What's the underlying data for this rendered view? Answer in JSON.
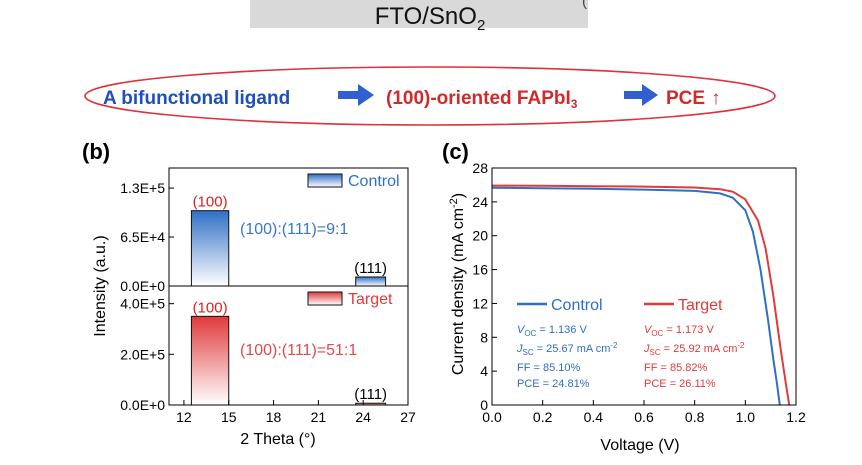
{
  "header": {
    "substrate_base": "FTO/SnO",
    "substrate_sub": "2",
    "substrate_tail": "(",
    "banner_part1": "A bifunctional ligand",
    "banner_part2": "(100)-oriented FAPbI",
    "banner_sub": "3",
    "banner_part3": "PCE",
    "banner_arrow_glyph": "↑",
    "colors": {
      "banner_outline": "#e0303a",
      "banner_text1": "#1f4fbf",
      "banner_text2": "#d12a2a",
      "arrow": "#2f5fd0",
      "substrate_box": "#d9d9d9"
    }
  },
  "chart_data": [
    {
      "panel_label": "(b)",
      "type": "bar",
      "xlabel": "2 Theta (°)",
      "ylabel": "Intensity (a.u.)",
      "xlim": [
        11,
        27
      ],
      "xticks": [
        12,
        15,
        18,
        21,
        24,
        27
      ],
      "xtick_labels": [
        "12",
        "15",
        "18",
        "21",
        "24",
        "27"
      ],
      "subplots": [
        {
          "name": "Control",
          "legend": "Control",
          "color": "#2f6fc4",
          "ylim": [
            0,
            150000
          ],
          "yticks": [
            0,
            65000,
            130000
          ],
          "ytick_labels": [
            "0.0E+0",
            "6.5E+4",
            "1.3E+5"
          ],
          "bars": [
            {
              "label": "(100)",
              "x_start": 12.5,
              "x_end": 15,
              "value": 100000,
              "label_color": "#e02020"
            },
            {
              "label": "(111)",
              "x_start": 23.5,
              "x_end": 25.5,
              "value": 12000,
              "label_color": "#000000"
            }
          ],
          "annotation": "(100):(111)=9:1",
          "annotation_color": "#3a78c4"
        },
        {
          "name": "Target",
          "legend": "Target",
          "color": "#e03a3a",
          "ylim": [
            0,
            450000
          ],
          "yticks": [
            0,
            200000,
            400000
          ],
          "ytick_labels": [
            "0.0E+0",
            "2.0E+5",
            "4.0E+5"
          ],
          "bars": [
            {
              "label": "(100)",
              "x_start": 12.5,
              "x_end": 15,
              "value": 350000,
              "label_color": "#e02020"
            },
            {
              "label": "(111)",
              "x_start": 23.5,
              "x_end": 25.5,
              "value": 7000,
              "label_color": "#000000"
            }
          ],
          "annotation": "(100):(111)=51:1",
          "annotation_color": "#e04a4a"
        }
      ]
    },
    {
      "panel_label": "(c)",
      "type": "line",
      "xlabel": "Voltage (V)",
      "ylabel_prefix": "Current density (mA cm",
      "ylabel_sup": "-2",
      "ylabel_suffix": ")",
      "xlim": [
        0,
        1.2
      ],
      "ylim": [
        0,
        28
      ],
      "xticks": [
        0.0,
        0.2,
        0.4,
        0.6,
        0.8,
        1.0,
        1.2
      ],
      "xtick_labels": [
        "0.0",
        "0.2",
        "0.4",
        "0.6",
        "0.8",
        "1.0",
        "1.2"
      ],
      "yticks": [
        0,
        4,
        8,
        12,
        16,
        20,
        24,
        28
      ],
      "ytick_labels": [
        "0",
        "4",
        "8",
        "12",
        "16",
        "20",
        "24",
        "28"
      ],
      "series": [
        {
          "name": "Control",
          "color": "#2f6fc4",
          "x": [
            0.0,
            0.2,
            0.4,
            0.6,
            0.8,
            0.9,
            0.95,
            1.0,
            1.03,
            1.06,
            1.09,
            1.11,
            1.125,
            1.136
          ],
          "y": [
            25.67,
            25.6,
            25.55,
            25.45,
            25.3,
            25.0,
            24.5,
            23.0,
            20.5,
            16.0,
            10.0,
            5.5,
            2.5,
            0.0
          ],
          "params": {
            "voc_label": "V",
            "voc_sub": "OC",
            "voc_value": " = 1.136 V",
            "jsc_label": "J",
            "jsc_sub": "SC",
            "jsc_value": " = 25.67 mA cm",
            "jsc_sup": "-2",
            "ff": "FF = 85.10%",
            "pce": "PCE = 24.81%"
          }
        },
        {
          "name": "Target",
          "color": "#e03a3a",
          "x": [
            0.0,
            0.2,
            0.4,
            0.6,
            0.8,
            0.9,
            0.95,
            1.0,
            1.05,
            1.08,
            1.11,
            1.14,
            1.16,
            1.173
          ],
          "y": [
            25.92,
            25.9,
            25.85,
            25.8,
            25.7,
            25.5,
            25.2,
            24.3,
            21.8,
            18.5,
            13.0,
            6.5,
            2.5,
            0.0
          ],
          "params": {
            "voc_label": "V",
            "voc_sub": "OC",
            "voc_value": " = 1.173 V",
            "jsc_label": "J",
            "jsc_sub": "SC",
            "jsc_value": " = 25.92 mA cm",
            "jsc_sup": "-2",
            "ff": "FF = 85.82%",
            "pce": "PCE = 26.11%"
          }
        }
      ]
    }
  ]
}
